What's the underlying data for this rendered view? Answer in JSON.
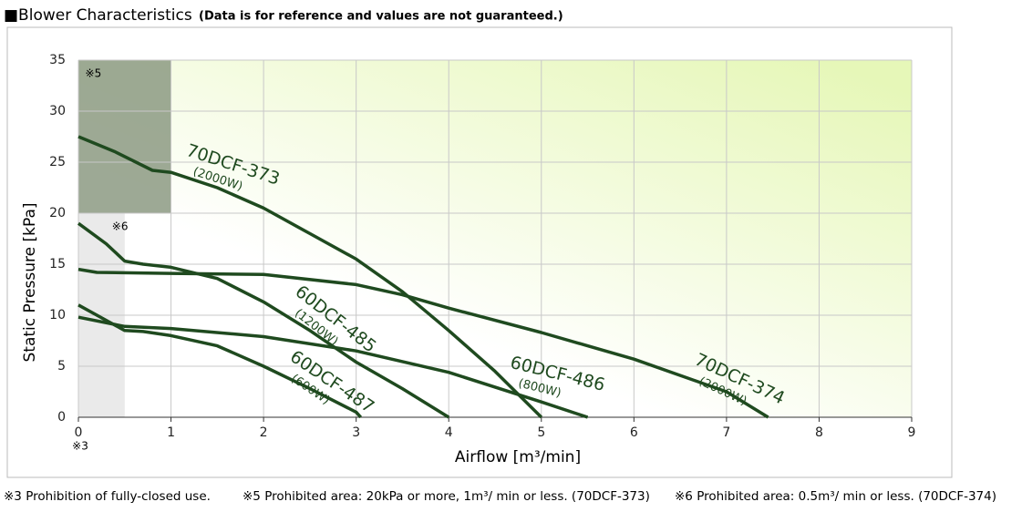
{
  "chart_data": {
    "type": "line",
    "title": "■Blower Characteristics",
    "subtitle": "(Data is for reference and values are not guaranteed.)",
    "x_label": "Airflow  [m³/min]",
    "y_label": "Static Pressure  [kPa]",
    "xlim": [
      0,
      9
    ],
    "ylim": [
      0,
      35
    ],
    "xticks": [
      0,
      1,
      2,
      3,
      4,
      5,
      6,
      7,
      8,
      9
    ],
    "yticks": [
      0,
      5,
      10,
      15,
      20,
      25,
      30,
      35
    ],
    "grid": true,
    "series": [
      {
        "name": "70DCF-373",
        "power": "(2000W)",
        "color": "#1f4a1f",
        "x": [
          0,
          0.4,
          0.8,
          1,
          1.5,
          2,
          2.5,
          3,
          3.5,
          4,
          4.5,
          5
        ],
        "values": [
          27.5,
          26,
          24.2,
          24,
          22.5,
          20.5,
          18,
          15.5,
          12.3,
          8.5,
          4.5,
          0
        ]
      },
      {
        "name": "60DCF-485",
        "power": "(1200W)",
        "color": "#1f4a1f",
        "x": [
          0,
          0.3,
          0.5,
          0.7,
          1,
          1.5,
          2,
          2.5,
          3,
          3.5,
          4
        ],
        "values": [
          19,
          17,
          15.3,
          15,
          14.7,
          13.6,
          11.3,
          8.5,
          5.4,
          2.8,
          0
        ]
      },
      {
        "name": "70DCF-374",
        "power": "(2000W)",
        "color": "#1f4a1f",
        "x": [
          0,
          0.2,
          1,
          2,
          3,
          3.5,
          4,
          5,
          6,
          7,
          7.45
        ],
        "values": [
          14.5,
          14.2,
          14.1,
          14,
          13,
          12,
          10.7,
          8.3,
          5.7,
          2.5,
          0
        ]
      },
      {
        "name": "60DCF-486",
        "power": "(800W)",
        "color": "#1f4a1f",
        "x": [
          0,
          0.5,
          1,
          2,
          3,
          4,
          5,
          5.5
        ],
        "values": [
          9.8,
          8.9,
          8.7,
          7.9,
          6.5,
          4.4,
          1.5,
          0
        ]
      },
      {
        "name": "60DCF-487",
        "power": "(600W)",
        "color": "#1f4a1f",
        "x": [
          0,
          0.3,
          0.5,
          0.7,
          1,
          1.5,
          2,
          2.5,
          3,
          3.05
        ],
        "values": [
          11,
          9.5,
          8.5,
          8.4,
          8,
          7,
          5,
          2.8,
          0.5,
          0
        ]
      }
    ],
    "regions": [
      {
        "label": "※5",
        "x": [
          0,
          1
        ],
        "y": [
          20,
          35
        ],
        "color": "#8c9a82"
      },
      {
        "label": "※6",
        "x": [
          0,
          0.5
        ],
        "y": [
          0,
          20
        ],
        "color": "#e6e6e6"
      }
    ],
    "zero_note": "※3",
    "notes": [
      "※3 Prohibition of fully-closed use.",
      "※5 Prohibited area: 20kPa or more, 1m³/ min or less. (70DCF-373)",
      "※6 Prohibited area: 0.5m³/ min or less.  (70DCF-374)"
    ]
  }
}
